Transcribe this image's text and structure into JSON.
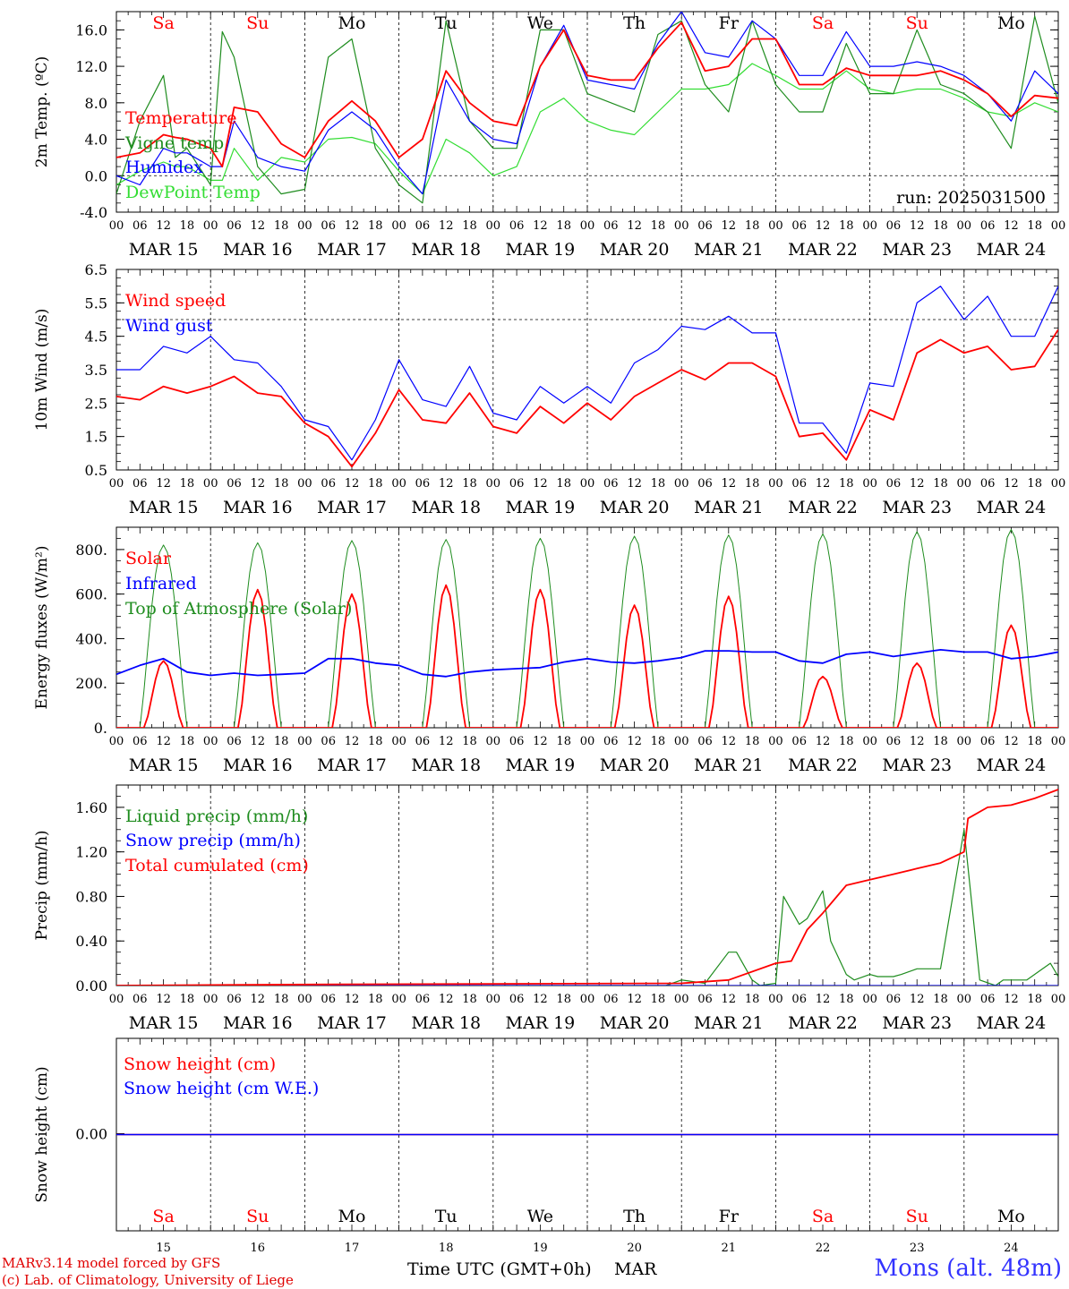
{
  "colors": {
    "red": "#ff0000",
    "darkgreen": "#1e8c1e",
    "blue": "#0000ff",
    "lightgreen": "#33dd33",
    "grid": "#000000"
  },
  "days": {
    "dates": [
      "MAR 15",
      "MAR 16",
      "MAR 17",
      "MAR 18",
      "MAR 19",
      "MAR 20",
      "MAR 21",
      "MAR 22",
      "MAR 23",
      "MAR 24"
    ],
    "weekdays": [
      "Sa",
      "Su",
      "Mo",
      "Tu",
      "We",
      "Th",
      "Fr",
      "Sa",
      "Su",
      "Mo"
    ],
    "weekend": [
      true,
      true,
      false,
      false,
      false,
      false,
      false,
      true,
      true,
      false
    ],
    "daynums": [
      "15",
      "16",
      "17",
      "18",
      "19",
      "20",
      "21",
      "22",
      "23",
      "24"
    ],
    "hour_ticks": [
      "00",
      "06",
      "12",
      "18"
    ],
    "final_tick": "00"
  },
  "run_label": "run: 2025031500",
  "footer": {
    "model": "MARv3.14 model forced by GFS",
    "lab": "(c) Lab. of Climatology, University of Liege",
    "xlabel": "Time UTC (GMT+0h)",
    "month": "MAR",
    "station": "Mons (alt. 48m)"
  },
  "chart_data": [
    {
      "type": "line",
      "ylabel": "2m Temp. (ºC)",
      "ylim": [
        -4,
        18
      ],
      "yticks": [
        "-4.0",
        "0.0",
        "4.0",
        "8.0",
        "12.0",
        "16.0"
      ],
      "ytick_values": [
        -4,
        0,
        4,
        8,
        12,
        16
      ],
      "dashed_y": 0,
      "x_unit": "hours since MAR 15 00 UTC",
      "series": [
        {
          "name": "Temperature",
          "color": "red",
          "x": [
            0,
            6,
            12,
            15,
            18,
            24,
            27,
            30,
            36,
            42,
            48,
            54,
            60,
            66,
            72,
            78,
            84,
            90,
            96,
            102,
            108,
            114,
            120,
            126,
            132,
            138,
            144,
            150,
            156,
            162,
            168,
            174,
            180,
            186,
            192,
            198,
            204,
            210,
            216,
            222,
            228,
            234,
            240
          ],
          "y": [
            2,
            2.5,
            4.5,
            4.2,
            4,
            3,
            1,
            7.5,
            7,
            3.5,
            2,
            6,
            8.2,
            6,
            2,
            4,
            11.5,
            8,
            6,
            5.5,
            12,
            16,
            11,
            10.5,
            10.5,
            14,
            16.8,
            11.5,
            12,
            15,
            15,
            10,
            10,
            11.8,
            11,
            11,
            11,
            11.5,
            10.5,
            9,
            6.5,
            8.8,
            8.5
          ]
        },
        {
          "name": "Vigne temp",
          "color": "darkgreen",
          "x": [
            0,
            6,
            12,
            15,
            18,
            24,
            27,
            30,
            36,
            42,
            48,
            54,
            60,
            66,
            72,
            78,
            84,
            90,
            96,
            102,
            108,
            114,
            120,
            126,
            132,
            138,
            144,
            150,
            156,
            162,
            168,
            174,
            180,
            186,
            192,
            198,
            204,
            210,
            216,
            222,
            228,
            234,
            240
          ],
          "y": [
            -2,
            6,
            11,
            2,
            3,
            -1,
            15.8,
            13,
            1,
            -2,
            -1.5,
            13,
            15,
            3,
            -1,
            -3,
            17,
            6,
            3,
            3,
            16,
            16,
            9,
            8,
            7,
            15.5,
            17,
            10,
            7,
            17,
            10,
            7,
            7,
            14.5,
            9,
            9,
            16,
            10,
            9,
            7,
            3,
            17.5,
            8
          ]
        },
        {
          "name": "Humidex",
          "color": "blue",
          "x": [
            0,
            6,
            12,
            15,
            18,
            24,
            27,
            30,
            36,
            42,
            48,
            54,
            60,
            66,
            72,
            78,
            84,
            90,
            96,
            102,
            108,
            114,
            120,
            126,
            132,
            138,
            144,
            150,
            156,
            162,
            168,
            174,
            180,
            186,
            192,
            198,
            204,
            210,
            216,
            222,
            228,
            234,
            240
          ],
          "y": [
            0,
            -1,
            3,
            2.5,
            2.5,
            1,
            1,
            6,
            2,
            1,
            0.5,
            5,
            7,
            5,
            1,
            -2,
            10.5,
            6,
            4,
            3.5,
            12,
            16.5,
            10.5,
            10,
            9.5,
            14.5,
            18,
            13.5,
            13,
            17,
            15,
            11,
            11,
            15.8,
            12,
            12,
            12.5,
            12,
            11,
            9,
            6,
            11.5,
            9
          ]
        },
        {
          "name": "DewPoint Temp",
          "color": "lightgreen",
          "x": [
            0,
            6,
            12,
            15,
            18,
            24,
            27,
            30,
            36,
            42,
            48,
            54,
            60,
            66,
            72,
            78,
            84,
            90,
            96,
            102,
            108,
            114,
            120,
            126,
            132,
            138,
            144,
            150,
            156,
            162,
            168,
            174,
            180,
            186,
            192,
            198,
            204,
            210,
            216,
            222,
            228,
            234,
            240
          ],
          "y": [
            -1,
            0.5,
            1.5,
            1,
            1,
            -0.5,
            -0.5,
            3,
            -0.5,
            2,
            1.5,
            4,
            4.2,
            3.5,
            0.5,
            -2,
            4,
            2.5,
            0,
            1,
            7,
            8.5,
            6,
            5,
            4.5,
            7,
            9.5,
            9.5,
            10,
            12.3,
            11,
            9.5,
            9.5,
            11.5,
            9.5,
            9,
            9.5,
            9.5,
            8.5,
            7,
            6.5,
            8,
            7
          ]
        }
      ]
    },
    {
      "type": "line",
      "ylabel": "10m Wind (m/s)",
      "ylim": [
        0.5,
        6.5
      ],
      "yticks": [
        "0.5",
        "1.5",
        "2.5",
        "3.5",
        "4.5",
        "5.5",
        "6.5"
      ],
      "ytick_values": [
        0.5,
        1.5,
        2.5,
        3.5,
        4.5,
        5.5,
        6.5
      ],
      "dashed_y": 5,
      "x_unit": "hours since MAR 15 00 UTC",
      "series": [
        {
          "name": "Wind speed",
          "color": "red",
          "x": [
            0,
            6,
            12,
            18,
            24,
            30,
            36,
            42,
            48,
            54,
            60,
            66,
            72,
            78,
            84,
            90,
            96,
            102,
            108,
            114,
            120,
            126,
            132,
            138,
            144,
            150,
            156,
            162,
            168,
            174,
            180,
            186,
            192,
            198,
            204,
            210,
            216,
            222,
            228,
            234,
            240
          ],
          "y": [
            2.7,
            2.6,
            3.0,
            2.8,
            3.0,
            3.3,
            2.8,
            2.7,
            1.9,
            1.5,
            0.6,
            1.6,
            2.9,
            2.0,
            1.9,
            2.8,
            1.8,
            1.6,
            2.4,
            1.9,
            2.5,
            2.0,
            2.7,
            3.1,
            3.5,
            3.2,
            3.7,
            3.7,
            3.3,
            1.5,
            1.6,
            0.8,
            2.3,
            2.0,
            4.0,
            4.4,
            4.0,
            4.2,
            3.5,
            3.6,
            4.7
          ]
        },
        {
          "name": "Wind gust",
          "color": "blue",
          "x": [
            0,
            6,
            12,
            18,
            24,
            30,
            36,
            42,
            48,
            54,
            60,
            66,
            72,
            78,
            84,
            90,
            96,
            102,
            108,
            114,
            120,
            126,
            132,
            138,
            144,
            150,
            156,
            162,
            168,
            174,
            180,
            186,
            192,
            198,
            204,
            210,
            216,
            222,
            228,
            234,
            240
          ],
          "y": [
            3.5,
            3.5,
            4.2,
            4.0,
            4.5,
            3.8,
            3.7,
            3.0,
            2.0,
            1.8,
            0.8,
            2.0,
            3.8,
            2.6,
            2.4,
            3.6,
            2.2,
            2.0,
            3.0,
            2.5,
            3.0,
            2.5,
            3.7,
            4.1,
            4.8,
            4.7,
            5.1,
            4.6,
            4.6,
            1.9,
            1.9,
            1.0,
            3.1,
            3.0,
            5.5,
            6.0,
            5.0,
            5.7,
            4.5,
            4.5,
            6.0
          ]
        }
      ]
    },
    {
      "type": "line",
      "ylabel": "Energy fluxes (W/m²)",
      "ylim": [
        0,
        900
      ],
      "yticks": [
        "0.",
        "200.",
        "400.",
        "600.",
        "800."
      ],
      "ytick_values": [
        0,
        200,
        400,
        600,
        800
      ],
      "x_unit": "hours since MAR 15 00 UTC",
      "peaks": {
        "solar": [
          300,
          620,
          600,
          640,
          620,
          550,
          590,
          230,
          290,
          460
        ],
        "toa": [
          820,
          830,
          840,
          845,
          850,
          860,
          865,
          870,
          880,
          890
        ]
      },
      "series": [
        {
          "name": "Solar",
          "color": "red",
          "x": "generated",
          "y": "see peaks.solar"
        },
        {
          "name": "Infrared",
          "color": "blue",
          "x": [
            0,
            6,
            12,
            18,
            24,
            30,
            36,
            42,
            48,
            54,
            60,
            66,
            72,
            78,
            84,
            90,
            96,
            102,
            108,
            114,
            120,
            126,
            132,
            138,
            144,
            150,
            156,
            162,
            168,
            174,
            180,
            186,
            192,
            198,
            204,
            210,
            216,
            222,
            228,
            234,
            240
          ],
          "y": [
            240,
            280,
            310,
            250,
            235,
            245,
            235,
            240,
            245,
            310,
            310,
            290,
            280,
            240,
            230,
            250,
            260,
            265,
            270,
            295,
            310,
            295,
            290,
            300,
            315,
            345,
            345,
            340,
            340,
            300,
            290,
            330,
            340,
            320,
            335,
            350,
            340,
            340,
            310,
            320,
            340
          ]
        },
        {
          "name": "Top of Atmosphere (Solar)",
          "color": "darkgreen",
          "x": "generated",
          "y": "see peaks.toa"
        }
      ]
    },
    {
      "type": "line",
      "ylabel": "Precip (mm/h)",
      "ylim": [
        0,
        1.8
      ],
      "yticks": [
        "0.00",
        "0.40",
        "0.80",
        "1.20",
        "1.60"
      ],
      "ytick_values": [
        0,
        0.4,
        0.8,
        1.2,
        1.6
      ],
      "x_unit": "hours since MAR 15 00 UTC",
      "series": [
        {
          "name": "Liquid precip (mm/h)",
          "color": "darkgreen",
          "x": [
            0,
            140,
            144,
            150,
            156,
            158,
            162,
            164,
            168,
            170,
            174,
            176,
            180,
            182,
            186,
            188,
            192,
            194,
            198,
            200,
            204,
            210,
            216,
            220,
            224,
            226,
            228,
            232,
            236,
            238,
            240
          ],
          "y": [
            0,
            0,
            0.05,
            0.02,
            0.3,
            0.3,
            0.05,
            0,
            0.02,
            0.8,
            0.55,
            0.6,
            0.85,
            0.4,
            0.1,
            0.05,
            0.1,
            0.08,
            0.08,
            0.1,
            0.15,
            0.15,
            1.4,
            0.05,
            0,
            0.05,
            0.05,
            0.05,
            0.15,
            0.2,
            0.08
          ]
        },
        {
          "name": "Snow precip (mm/h)",
          "color": "blue",
          "x": [
            0,
            240
          ],
          "y": [
            0,
            0
          ]
        },
        {
          "name": "Total cumulated (cm)",
          "color": "red",
          "x": [
            0,
            50,
            144,
            156,
            168,
            172,
            176,
            180,
            186,
            192,
            198,
            204,
            210,
            216,
            217,
            222,
            228,
            234,
            240
          ],
          "y": [
            0,
            0.01,
            0.02,
            0.05,
            0.2,
            0.22,
            0.5,
            0.65,
            0.9,
            0.95,
            1.0,
            1.05,
            1.1,
            1.2,
            1.5,
            1.6,
            1.62,
            1.68,
            1.76
          ]
        }
      ]
    },
    {
      "type": "line",
      "ylabel": "Snow height (cm)",
      "yticks": [
        "0.00"
      ],
      "x_unit": "hours since MAR 15 00 UTC",
      "series": [
        {
          "name": "Snow height (cm)",
          "color": "red",
          "x": [
            0,
            240
          ],
          "y": [
            0,
            0
          ]
        },
        {
          "name": "Snow height (cm W.E.)",
          "color": "blue",
          "x": [
            0,
            240
          ],
          "y": [
            0,
            0
          ]
        }
      ]
    }
  ]
}
